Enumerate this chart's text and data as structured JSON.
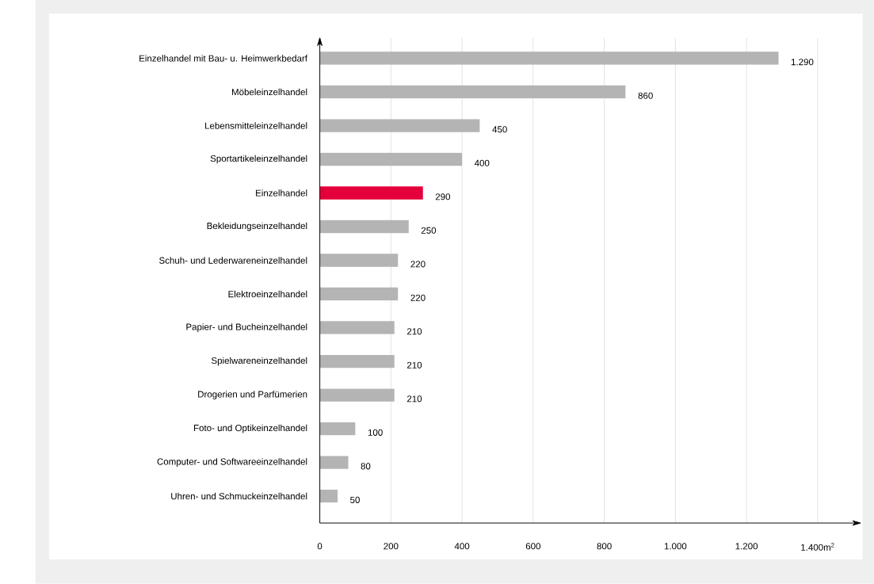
{
  "chart_data": {
    "type": "bar",
    "orientation": "horizontal",
    "categories": [
      "Einzelhandel mit Bau- u. Heimwerkbedarf",
      "Möbeleinzelhandel",
      "Lebensmitteleinzelhandel",
      "Sportartikeleinzelhandel",
      "Einzelhandel",
      "Bekleidungseinzelhandel",
      "Schuh- und Lederwareneinzelhandel",
      "Elektroeinzelhandel",
      "Papier- und Bucheinzelhandel",
      "Spielwareneinzelhandel",
      "Drogerien und Parfümerien",
      "Foto- und Optikeinzelhandel",
      "Computer- und Softwareeinzelhandel",
      "Uhren- und Schmuckeinzelhandel"
    ],
    "values": [
      1290,
      860,
      450,
      400,
      290,
      250,
      220,
      220,
      210,
      210,
      210,
      100,
      80,
      50
    ],
    "value_labels": [
      "1.290",
      "860",
      "450",
      "400",
      "290",
      "250",
      "220",
      "220",
      "210",
      "210",
      "210",
      "100",
      "80",
      "50"
    ],
    "colors": [
      "#b4b4b4",
      "#b4b4b4",
      "#b4b4b4",
      "#b4b4b4",
      "#e4003a",
      "#b4b4b4",
      "#b4b4b4",
      "#b4b4b4",
      "#b4b4b4",
      "#b4b4b4",
      "#b4b4b4",
      "#b4b4b4",
      "#b4b4b4",
      "#b4b4b4"
    ],
    "xlim": [
      0,
      1520
    ],
    "xticks": [
      0,
      200,
      400,
      600,
      800,
      {
        "value": 1000,
        "label": "1.000"
      },
      {
        "value": 1200,
        "label": "1.200"
      },
      {
        "value": 1400,
        "label": "1.400m$^{2}$"
      }
    ],
    "grid": "x"
  }
}
